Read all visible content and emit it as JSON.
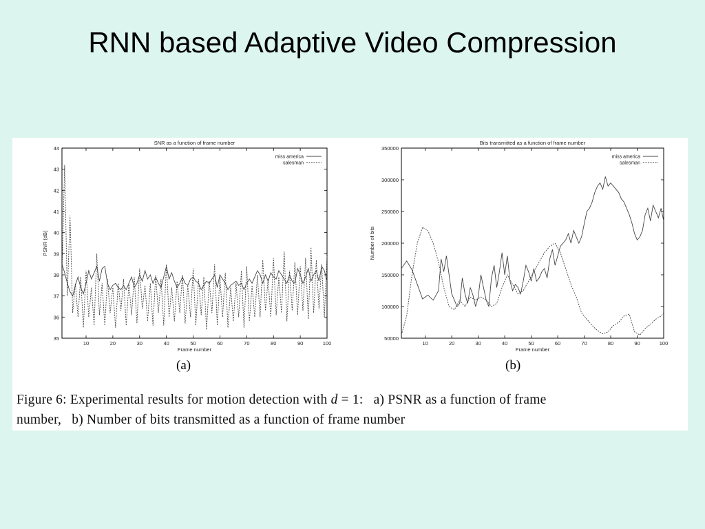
{
  "slide": {
    "title": "RNN based Adaptive Video Compression"
  },
  "figure": {
    "caption_prefix": "Figure 6:  Experimental results for motion detection with ",
    "caption_var": "d",
    "caption_eq": " = 1:",
    "caption_a": "a) PSNR as a function of frame",
    "caption_line2_a": "number,",
    "caption_b": "b) Number of bits transmitted as a function of frame number",
    "sublabel_a": "(a)",
    "sublabel_b": "(b)"
  },
  "chart_data": [
    {
      "type": "line",
      "title": "SNR as a function of frame number",
      "xlabel": "Frame number",
      "ylabel": "PSNR (dB)",
      "xlim": [
        1,
        100
      ],
      "ylim": [
        35,
        44
      ],
      "xticks": [
        10,
        20,
        30,
        40,
        50,
        60,
        70,
        80,
        90,
        100
      ],
      "yticks": [
        35,
        36,
        37,
        38,
        39,
        40,
        41,
        42,
        43,
        44
      ],
      "legend": "top-right",
      "series": [
        {
          "name": "miss america",
          "style": "solid",
          "x": [
            1,
            2,
            3,
            4,
            5,
            6,
            7,
            8,
            9,
            10,
            11,
            12,
            13,
            14,
            15,
            16,
            17,
            18,
            19,
            20,
            21,
            22,
            23,
            24,
            25,
            26,
            27,
            28,
            29,
            30,
            31,
            32,
            33,
            34,
            35,
            36,
            37,
            38,
            39,
            40,
            41,
            42,
            43,
            44,
            45,
            46,
            47,
            48,
            49,
            50,
            51,
            52,
            53,
            54,
            55,
            56,
            57,
            58,
            59,
            60,
            61,
            62,
            63,
            64,
            65,
            66,
            67,
            68,
            69,
            70,
            71,
            72,
            73,
            74,
            75,
            76,
            77,
            78,
            79,
            80,
            81,
            82,
            83,
            84,
            85,
            86,
            87,
            88,
            89,
            90,
            91,
            92,
            93,
            94,
            95,
            96,
            97,
            98,
            99,
            100
          ],
          "y": [
            38.5,
            38.1,
            37.6,
            37.2,
            37.0,
            37.5,
            37.9,
            37.4,
            37.1,
            37.6,
            38.2,
            37.8,
            38.1,
            38.4,
            37.7,
            38.3,
            38.4,
            37.6,
            37.3,
            37.5,
            37.6,
            37.4,
            37.3,
            37.5,
            37.3,
            37.6,
            37.9,
            37.4,
            37.6,
            38.0,
            37.7,
            38.2,
            37.8,
            38.0,
            37.6,
            37.9,
            37.6,
            37.4,
            37.9,
            38.4,
            37.8,
            38.1,
            37.7,
            37.4,
            37.6,
            37.9,
            37.6,
            37.5,
            37.8,
            37.9,
            37.7,
            37.6,
            37.3,
            37.5,
            37.7,
            37.6,
            37.8,
            38.0,
            37.4,
            38.0,
            37.8,
            37.6,
            37.3,
            37.5,
            37.6,
            37.7,
            37.5,
            37.6,
            37.3,
            37.6,
            37.8,
            37.6,
            37.9,
            38.2,
            38.0,
            37.6,
            38.0,
            37.7,
            38.1,
            37.9,
            37.8,
            38.2,
            38.0,
            37.8,
            37.6,
            38.0,
            37.7,
            37.6,
            38.3,
            38.0,
            37.6,
            37.9,
            38.3,
            37.7,
            38.0,
            38.2,
            37.7,
            38.4,
            38.2,
            37.7
          ]
        },
        {
          "name": "salesman",
          "style": "dashed",
          "x": [
            1,
            2,
            3,
            4,
            5,
            6,
            7,
            8,
            9,
            10,
            11,
            12,
            13,
            14,
            15,
            16,
            17,
            18,
            19,
            20,
            21,
            22,
            23,
            24,
            25,
            26,
            27,
            28,
            29,
            30,
            31,
            32,
            33,
            34,
            35,
            36,
            37,
            38,
            39,
            40,
            41,
            42,
            43,
            44,
            45,
            46,
            47,
            48,
            49,
            50,
            51,
            52,
            53,
            54,
            55,
            56,
            57,
            58,
            59,
            60,
            61,
            62,
            63,
            64,
            65,
            66,
            67,
            68,
            69,
            70,
            71,
            72,
            73,
            74,
            75,
            76,
            77,
            78,
            79,
            80,
            81,
            82,
            83,
            84,
            85,
            86,
            87,
            88,
            89,
            90,
            91,
            92,
            93,
            94,
            95,
            96,
            97,
            98,
            99,
            100
          ],
          "y": [
            38.0,
            43.2,
            37.0,
            40.8,
            36.2,
            37.6,
            36.0,
            37.9,
            35.5,
            38.2,
            36.0,
            37.4,
            35.6,
            39.0,
            36.1,
            37.6,
            35.6,
            37.8,
            36.2,
            37.4,
            35.5,
            37.6,
            36.3,
            37.8,
            35.6,
            37.6,
            36.1,
            37.9,
            35.7,
            38.3,
            36.4,
            37.5,
            35.8,
            37.6,
            35.6,
            38.0,
            36.2,
            37.8,
            35.6,
            38.5,
            36.0,
            37.4,
            35.8,
            37.7,
            36.2,
            38.0,
            35.7,
            37.5,
            36.0,
            38.3,
            35.6,
            37.8,
            36.1,
            37.9,
            35.4,
            37.7,
            36.2,
            38.5,
            35.6,
            37.9,
            36.0,
            38.1,
            35.5,
            37.4,
            35.8,
            37.6,
            36.0,
            38.2,
            35.5,
            38.4,
            35.8,
            37.5,
            36.0,
            38.0,
            36.0,
            38.7,
            36.3,
            37.8,
            36.0,
            38.8,
            36.1,
            37.9,
            36.2,
            39.1,
            35.8,
            38.2,
            36.3,
            38.6,
            36.1,
            38.4,
            36.3,
            38.8,
            35.9,
            39.3,
            36.2,
            38.7,
            36.4,
            38.5,
            36.0,
            38.9
          ]
        }
      ]
    },
    {
      "type": "line",
      "title": "Bits transmitted as a function of frame number",
      "xlabel": "Frame number",
      "ylabel": "Number of bits",
      "xlim": [
        1,
        100
      ],
      "ylim": [
        50000,
        350000
      ],
      "xticks": [
        10,
        20,
        30,
        40,
        50,
        60,
        70,
        80,
        90,
        100
      ],
      "yticks": [
        50000,
        100000,
        150000,
        200000,
        250000,
        300000,
        350000
      ],
      "legend": "top-right",
      "series": [
        {
          "name": "miss america",
          "style": "solid",
          "x": [
            1,
            3,
            5,
            7,
            9,
            11,
            13,
            15,
            16,
            17,
            18,
            19,
            20,
            21,
            22,
            23,
            24,
            25,
            26,
            27,
            28,
            29,
            30,
            31,
            32,
            33,
            34,
            35,
            36,
            37,
            38,
            39,
            40,
            41,
            42,
            43,
            44,
            45,
            46,
            47,
            48,
            49,
            50,
            51,
            52,
            53,
            54,
            55,
            56,
            57,
            58,
            59,
            60,
            61,
            62,
            63,
            64,
            65,
            66,
            67,
            68,
            69,
            70,
            71,
            72,
            73,
            74,
            75,
            76,
            77,
            78,
            79,
            80,
            81,
            82,
            83,
            84,
            85,
            86,
            87,
            88,
            89,
            90,
            91,
            92,
            93,
            94,
            95,
            96,
            97,
            98,
            99,
            100
          ],
          "y": [
            160000,
            172000,
            158000,
            135000,
            112000,
            118000,
            110000,
            125000,
            175000,
            155000,
            180000,
            150000,
            120000,
            110000,
            100000,
            105000,
            145000,
            120000,
            105000,
            130000,
            118000,
            100000,
            115000,
            150000,
            130000,
            110000,
            100000,
            145000,
            165000,
            130000,
            155000,
            185000,
            150000,
            180000,
            140000,
            125000,
            135000,
            130000,
            120000,
            140000,
            165000,
            155000,
            140000,
            160000,
            140000,
            145000,
            155000,
            160000,
            145000,
            175000,
            190000,
            165000,
            180000,
            195000,
            200000,
            205000,
            215000,
            200000,
            220000,
            210000,
            200000,
            210000,
            230000,
            250000,
            255000,
            265000,
            280000,
            290000,
            295000,
            285000,
            305000,
            290000,
            295000,
            290000,
            285000,
            280000,
            270000,
            265000,
            255000,
            245000,
            232000,
            215000,
            205000,
            210000,
            220000,
            245000,
            255000,
            235000,
            260000,
            250000,
            240000,
            255000,
            235000
          ]
        },
        {
          "name": "salesman",
          "style": "dashed",
          "x": [
            1,
            3,
            5,
            7,
            9,
            11,
            13,
            15,
            17,
            19,
            21,
            23,
            25,
            27,
            29,
            31,
            33,
            35,
            37,
            39,
            41,
            43,
            45,
            47,
            49,
            51,
            53,
            55,
            57,
            59,
            61,
            63,
            65,
            67,
            69,
            71,
            73,
            75,
            77,
            79,
            81,
            83,
            85,
            87,
            89,
            91,
            93,
            95,
            97,
            99,
            100
          ],
          "y": [
            55000,
            85000,
            150000,
            200000,
            225000,
            220000,
            200000,
            170000,
            130000,
            100000,
            95000,
            110000,
            100000,
            115000,
            110000,
            115000,
            110000,
            100000,
            105000,
            130000,
            150000,
            135000,
            120000,
            125000,
            140000,
            155000,
            170000,
            185000,
            195000,
            200000,
            185000,
            160000,
            135000,
            115000,
            90000,
            80000,
            70000,
            62000,
            57000,
            60000,
            70000,
            75000,
            85000,
            88000,
            60000,
            55000,
            65000,
            72000,
            80000,
            85000,
            90000
          ]
        }
      ]
    }
  ]
}
